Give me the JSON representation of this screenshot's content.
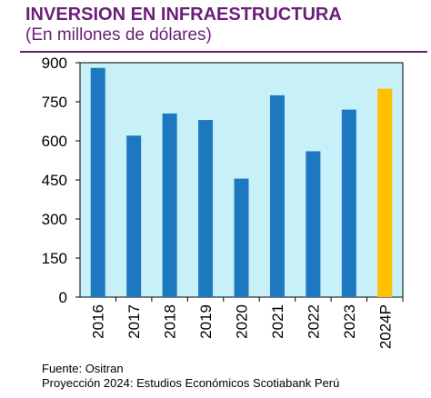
{
  "header": {
    "title": "INVERSION EN INFRAESTRUCTURA",
    "subtitle": "(En millones de dólares)"
  },
  "footer": {
    "source": "Fuente: Ositran",
    "projection": "Proyección 2024: Estudios Económicos Scotiabank Perú"
  },
  "colors": {
    "brand": "#6b1e78",
    "plot_background": "#c8f0f8",
    "bar": "#1e78c0",
    "bar_projection": "#ffc000"
  },
  "chart_data": {
    "type": "bar",
    "categories": [
      "2016",
      "2017",
      "2018",
      "2019",
      "2020",
      "2021",
      "2022",
      "2023",
      "2024P"
    ],
    "values": [
      880,
      620,
      705,
      680,
      455,
      775,
      560,
      720,
      800
    ],
    "highlight_category": "2024P",
    "yticks": [
      0,
      150,
      300,
      450,
      600,
      750,
      900
    ],
    "ylim": [
      0,
      900
    ],
    "xlabel": "",
    "ylabel": "",
    "grid": false,
    "legend": "none"
  }
}
